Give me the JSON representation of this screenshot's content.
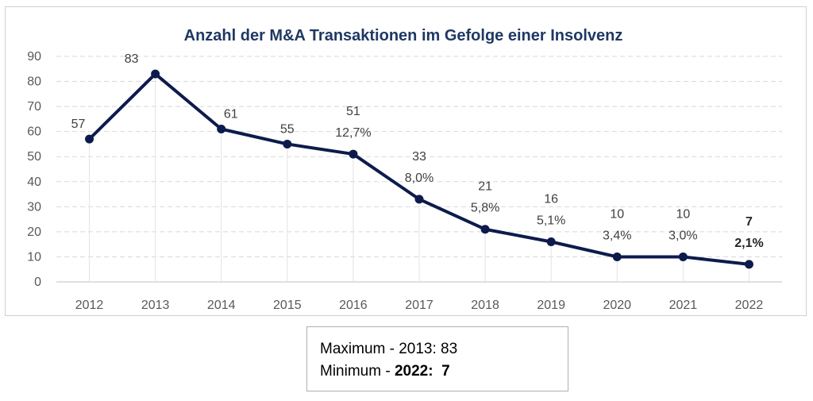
{
  "chart_data": {
    "type": "line",
    "title": "Anzahl der M&A Transaktionen im Gefolge einer Insolvenz",
    "xlabel": "",
    "ylabel": "",
    "ylim": [
      0,
      90
    ],
    "yticks": [
      "0",
      "10",
      "20",
      "30",
      "40",
      "50",
      "60",
      "70",
      "80",
      "90"
    ],
    "grid": true,
    "categories": [
      "2012",
      "2013",
      "2014",
      "2015",
      "2016",
      "2017",
      "2018",
      "2019",
      "2020",
      "2021",
      "2022"
    ],
    "series": [
      {
        "values": [
          57,
          83,
          61,
          55,
          51,
          33,
          21,
          16,
          10,
          10,
          7
        ]
      }
    ],
    "value_labels": [
      "57",
      "83",
      "61",
      "55",
      "51",
      "33",
      "21",
      "16",
      "10",
      "10",
      "7"
    ],
    "percent_labels": [
      "",
      "",
      "",
      "",
      "12,7%",
      "8,0%",
      "5,8%",
      "5,1%",
      "3,4%",
      "3,0%",
      "2,1%"
    ],
    "bold_last_point": true,
    "line_color": "#0d1b4c",
    "grid_color": "#d9d9d9"
  },
  "summary": {
    "max_prefix": "Maximum - 2013: 83",
    "min_prefix": "Minimum - ",
    "min_year": "2022:",
    "min_value": "7"
  }
}
